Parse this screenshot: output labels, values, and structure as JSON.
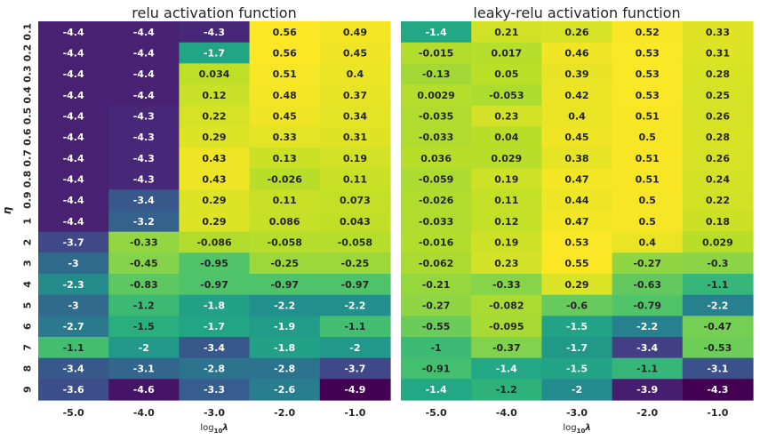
{
  "chart_data": [
    {
      "type": "heatmap",
      "title": "relu activation function",
      "xlabel": "log",
      "xlabel_sub": "10",
      "xlabel_suffix": "λ",
      "ylabel": "η",
      "x_categories": [
        "-5.0",
        "-4.0",
        "-3.0",
        "-2.0",
        "-1.0"
      ],
      "y_categories": [
        "0.1",
        "0.2",
        "0.3",
        "0.4",
        "0.5",
        "0.6",
        "0.7",
        "0.8",
        "0.9",
        "1",
        "2",
        "3",
        "4",
        "5",
        "6",
        "7",
        "8",
        "9"
      ],
      "values": [
        [
          "-4.4",
          "-4.4",
          "-4.3",
          "0.56",
          "0.49"
        ],
        [
          "-4.4",
          "-4.4",
          "-1.7",
          "0.56",
          "0.45"
        ],
        [
          "-4.4",
          "-4.4",
          "0.034",
          "0.51",
          "0.4"
        ],
        [
          "-4.4",
          "-4.4",
          "0.12",
          "0.48",
          "0.37"
        ],
        [
          "-4.4",
          "-4.3",
          "0.22",
          "0.45",
          "0.34"
        ],
        [
          "-4.4",
          "-4.3",
          "0.29",
          "0.33",
          "0.31"
        ],
        [
          "-4.4",
          "-4.3",
          "0.43",
          "0.13",
          "0.19"
        ],
        [
          "-4.4",
          "-4.3",
          "0.43",
          "-0.026",
          "0.11"
        ],
        [
          "-4.4",
          "-3.4",
          "0.29",
          "0.11",
          "0.073"
        ],
        [
          "-4.4",
          "-3.2",
          "0.29",
          "0.086",
          "0.043"
        ],
        [
          "-3.7",
          "-0.33",
          "-0.086",
          "-0.058",
          "-0.058"
        ],
        [
          "-3",
          "-0.45",
          "-0.95",
          "-0.25",
          "-0.25"
        ],
        [
          "-2.3",
          "-0.83",
          "-0.97",
          "-0.97",
          "-0.97"
        ],
        [
          "-3",
          "-1.2",
          "-1.8",
          "-2.2",
          "-2.2"
        ],
        [
          "-2.7",
          "-1.5",
          "-1.7",
          "-1.9",
          "-1.1"
        ],
        [
          "-1.1",
          "-2",
          "-3.4",
          "-1.8",
          "-2"
        ],
        [
          "-3.4",
          "-3.1",
          "-2.8",
          "-2.8",
          "-3.7"
        ],
        [
          "-3.6",
          "-4.6",
          "-3.3",
          "-2.6",
          "-4.9"
        ]
      ],
      "colormap": "viridis",
      "color_range": [
        -4.9,
        0.56
      ],
      "colorbar": false
    },
    {
      "type": "heatmap",
      "title": "leaky-relu activation function",
      "xlabel": "log",
      "xlabel_sub": "10",
      "xlabel_suffix": "λ",
      "ylabel": "",
      "x_categories": [
        "-5.0",
        "-4.0",
        "-3.0",
        "-2.0",
        "-1.0"
      ],
      "y_categories": [],
      "values": [
        [
          "-1.4",
          "0.21",
          "0.26",
          "0.52",
          "0.33"
        ],
        [
          "-0.015",
          "0.017",
          "0.46",
          "0.53",
          "0.31"
        ],
        [
          "-0.13",
          "0.05",
          "0.39",
          "0.53",
          "0.28"
        ],
        [
          "0.0029",
          "-0.053",
          "0.42",
          "0.53",
          "0.25"
        ],
        [
          "-0.035",
          "0.23",
          "0.4",
          "0.51",
          "0.26"
        ],
        [
          "-0.033",
          "0.04",
          "0.45",
          "0.5",
          "0.28"
        ],
        [
          "0.036",
          "0.029",
          "0.38",
          "0.51",
          "0.26"
        ],
        [
          "-0.059",
          "0.19",
          "0.47",
          "0.51",
          "0.24"
        ],
        [
          "-0.026",
          "0.11",
          "0.44",
          "0.5",
          "0.22"
        ],
        [
          "-0.033",
          "0.12",
          "0.47",
          "0.5",
          "0.18"
        ],
        [
          "-0.016",
          "0.19",
          "0.53",
          "0.4",
          "0.029"
        ],
        [
          "-0.062",
          "0.23",
          "0.55",
          "-0.27",
          "-0.3"
        ],
        [
          "-0.21",
          "-0.33",
          "0.29",
          "-0.63",
          "-1.1"
        ],
        [
          "-0.27",
          "-0.082",
          "-0.6",
          "-0.79",
          "-2.2"
        ],
        [
          "-0.55",
          "-0.095",
          "-1.5",
          "-2.2",
          "-0.47"
        ],
        [
          "-1",
          "-0.37",
          "-1.7",
          "-3.4",
          "-0.53"
        ],
        [
          "-0.91",
          "-1.4",
          "-1.5",
          "-1.1",
          "-3.1"
        ],
        [
          "-1.4",
          "-1.2",
          "-2",
          "-3.9",
          "-4.3"
        ]
      ],
      "colormap": "viridis",
      "color_range": [
        -4.3,
        0.55
      ],
      "colorbar": false
    }
  ]
}
